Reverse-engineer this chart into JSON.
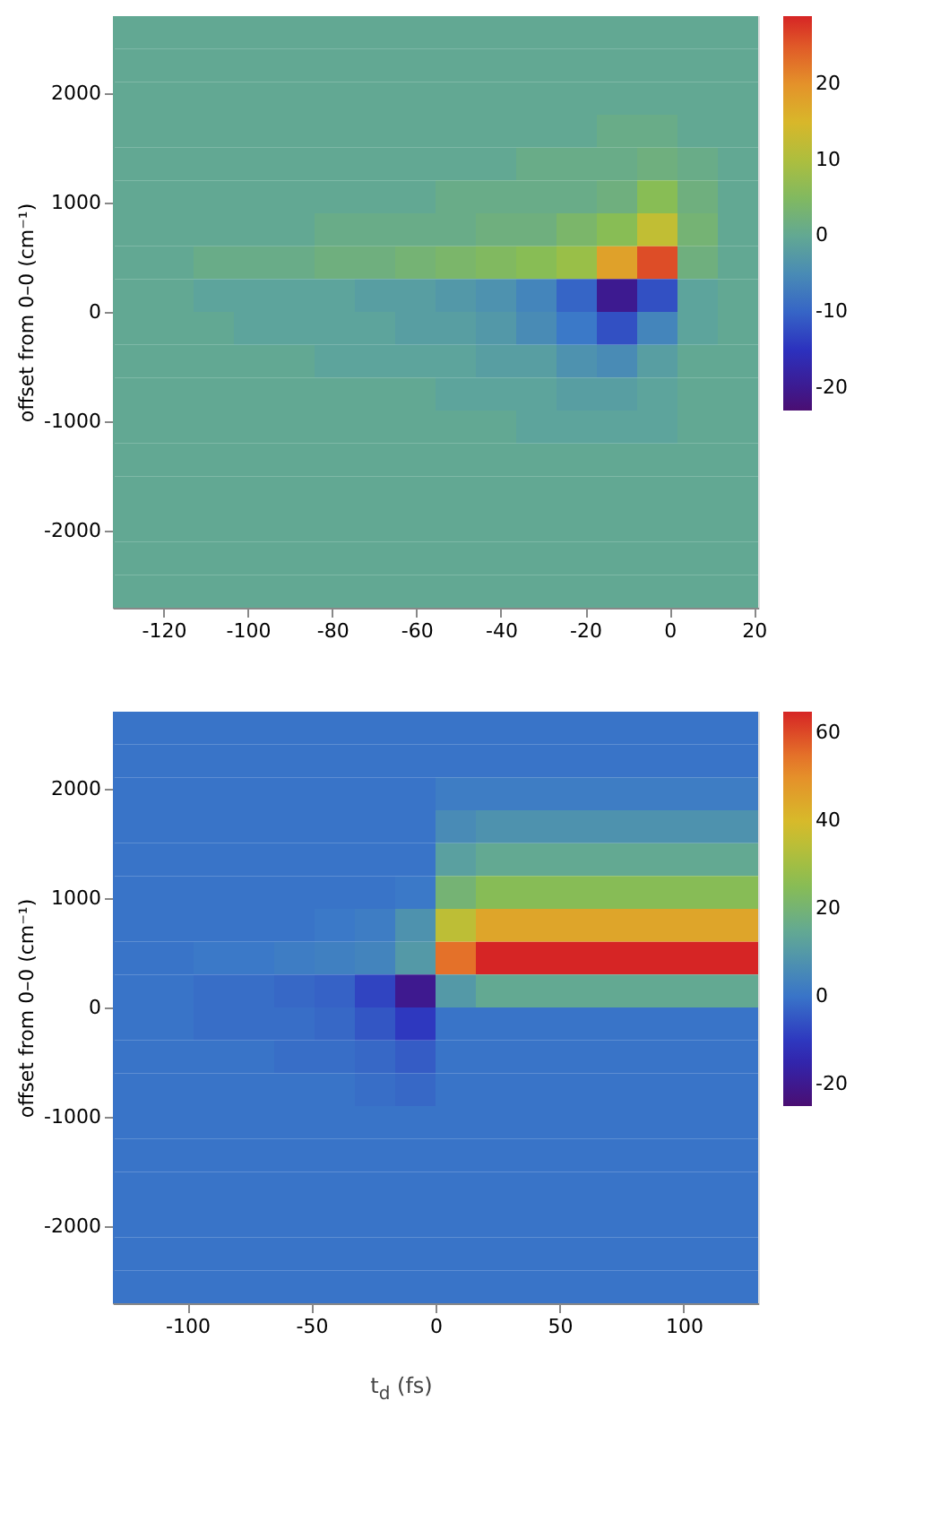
{
  "chart_data": [
    {
      "type": "heatmap",
      "ylabel": "offset from 0–0 (cm⁻¹)",
      "xlim": [
        -132,
        21
      ],
      "xticks": [
        -120,
        -100,
        -80,
        -60,
        -40,
        -20,
        0,
        20
      ],
      "ylim": [
        -2700,
        2700
      ],
      "yticks": [
        -2000,
        -1000,
        0,
        1000,
        2000
      ],
      "clim": [
        -23,
        29
      ],
      "cticks": [
        -20,
        -10,
        0,
        10,
        20
      ],
      "grid": false,
      "cells": [
        [
          0,
          0,
          0,
          0,
          0,
          0,
          0,
          0,
          0,
          0,
          0,
          0,
          0,
          0,
          0,
          0
        ],
        [
          0,
          0,
          0,
          0,
          0,
          0,
          0,
          0,
          0,
          0,
          0,
          0,
          0,
          0,
          0,
          0
        ],
        [
          0,
          0,
          0,
          0,
          0,
          0,
          0,
          0,
          0,
          0,
          0,
          0,
          0,
          0,
          0,
          0
        ],
        [
          0,
          0,
          0,
          0,
          0,
          0,
          0,
          0,
          0,
          0,
          0,
          0,
          1,
          1,
          0,
          0
        ],
        [
          0,
          0,
          0,
          0,
          0,
          0,
          0,
          0,
          0,
          0,
          1,
          1,
          1,
          2,
          1,
          0
        ],
        [
          0,
          0,
          0,
          0,
          0,
          0,
          0,
          0,
          1,
          1,
          1,
          1,
          2,
          6,
          2,
          0
        ],
        [
          0,
          0,
          0,
          0,
          0,
          1,
          1,
          1,
          1,
          2,
          2,
          4,
          6,
          12,
          3,
          0
        ],
        [
          0,
          0,
          1,
          1,
          1,
          2,
          2,
          3,
          4,
          5,
          6,
          8,
          18,
          26,
          2,
          0
        ],
        [
          0,
          0,
          -1,
          -1,
          -1,
          -1,
          -2,
          -2,
          -3,
          -4,
          -6,
          -10,
          -20,
          -12,
          -1,
          0
        ],
        [
          0,
          0,
          0,
          -1,
          -1,
          -1,
          -1,
          -2,
          -2,
          -3,
          -5,
          -8,
          -12,
          -6,
          -1,
          0
        ],
        [
          0,
          0,
          0,
          0,
          0,
          -1,
          -1,
          -1,
          -1,
          -2,
          -2,
          -4,
          -5,
          -2,
          0,
          0
        ],
        [
          0,
          0,
          0,
          0,
          0,
          0,
          0,
          0,
          -1,
          -1,
          -1,
          -2,
          -2,
          -1,
          0,
          0
        ],
        [
          0,
          0,
          0,
          0,
          0,
          0,
          0,
          0,
          0,
          0,
          -1,
          -1,
          -1,
          -1,
          0,
          0
        ],
        [
          0,
          0,
          0,
          0,
          0,
          0,
          0,
          0,
          0,
          0,
          0,
          0,
          0,
          0,
          0,
          0
        ],
        [
          0,
          0,
          0,
          0,
          0,
          0,
          0,
          0,
          0,
          0,
          0,
          0,
          0,
          0,
          0,
          0
        ],
        [
          0,
          0,
          0,
          0,
          0,
          0,
          0,
          0,
          0,
          0,
          0,
          0,
          0,
          0,
          0,
          0
        ],
        [
          0,
          0,
          0,
          0,
          0,
          0,
          0,
          0,
          0,
          0,
          0,
          0,
          0,
          0,
          0,
          0
        ],
        [
          0,
          0,
          0,
          0,
          0,
          0,
          0,
          0,
          0,
          0,
          0,
          0,
          0,
          0,
          0,
          0
        ]
      ]
    },
    {
      "type": "heatmap",
      "xlabel": "t$_{d}$ (fs)",
      "ylabel": "offset from 0–0 (cm⁻¹)",
      "xlim": [
        -130,
        130
      ],
      "xticks": [
        -100,
        -50,
        0,
        50,
        100
      ],
      "ylim": [
        -2700,
        2700
      ],
      "yticks": [
        -2000,
        -1000,
        0,
        1000,
        2000
      ],
      "clim": [
        -25,
        65
      ],
      "cticks": [
        -20,
        0,
        20,
        40,
        60
      ],
      "grid": false,
      "cells": [
        [
          0,
          0,
          0,
          0,
          0,
          0,
          0,
          0,
          0,
          0,
          0,
          0,
          0,
          0,
          0,
          0
        ],
        [
          0,
          0,
          0,
          0,
          0,
          0,
          0,
          0,
          0,
          0,
          0,
          0,
          0,
          0,
          0,
          0
        ],
        [
          0,
          0,
          0,
          0,
          0,
          0,
          0,
          0,
          2,
          2,
          2,
          2,
          2,
          2,
          2,
          2
        ],
        [
          0,
          0,
          0,
          0,
          0,
          0,
          0,
          0,
          6,
          8,
          8,
          8,
          8,
          8,
          8,
          8
        ],
        [
          0,
          0,
          0,
          0,
          0,
          0,
          0,
          0,
          12,
          15,
          15,
          15,
          15,
          15,
          15,
          15
        ],
        [
          0,
          0,
          0,
          0,
          0,
          0,
          0,
          1,
          20,
          25,
          25,
          25,
          25,
          25,
          25,
          25
        ],
        [
          0,
          0,
          0,
          0,
          0,
          1,
          2,
          8,
          35,
          45,
          45,
          45,
          45,
          45,
          45,
          45
        ],
        [
          0,
          0,
          1,
          1,
          2,
          3,
          4,
          10,
          55,
          65,
          65,
          65,
          65,
          65,
          65,
          65
        ],
        [
          0,
          0,
          -1,
          -1,
          -2,
          -3,
          -8,
          -20,
          10,
          15,
          15,
          15,
          15,
          15,
          15,
          15
        ],
        [
          0,
          0,
          -1,
          -1,
          -1,
          -2,
          -5,
          -10,
          0,
          0,
          0,
          0,
          0,
          0,
          0,
          0
        ],
        [
          0,
          0,
          0,
          0,
          -1,
          -1,
          -2,
          -4,
          0,
          0,
          0,
          0,
          0,
          0,
          0,
          0
        ],
        [
          0,
          0,
          0,
          0,
          0,
          0,
          -1,
          -2,
          0,
          0,
          0,
          0,
          0,
          0,
          0,
          0
        ],
        [
          0,
          0,
          0,
          0,
          0,
          0,
          0,
          0,
          0,
          0,
          0,
          0,
          0,
          0,
          0,
          0
        ],
        [
          0,
          0,
          0,
          0,
          0,
          0,
          0,
          0,
          0,
          0,
          0,
          0,
          0,
          0,
          0,
          0
        ],
        [
          0,
          0,
          0,
          0,
          0,
          0,
          0,
          0,
          0,
          0,
          0,
          0,
          0,
          0,
          0,
          0
        ],
        [
          0,
          0,
          0,
          0,
          0,
          0,
          0,
          0,
          0,
          0,
          0,
          0,
          0,
          0,
          0,
          0
        ],
        [
          0,
          0,
          0,
          0,
          0,
          0,
          0,
          0,
          0,
          0,
          0,
          0,
          0,
          0,
          0,
          0
        ],
        [
          0,
          0,
          0,
          0,
          0,
          0,
          0,
          0,
          0,
          0,
          0,
          0,
          0,
          0,
          0,
          0
        ]
      ]
    }
  ]
}
